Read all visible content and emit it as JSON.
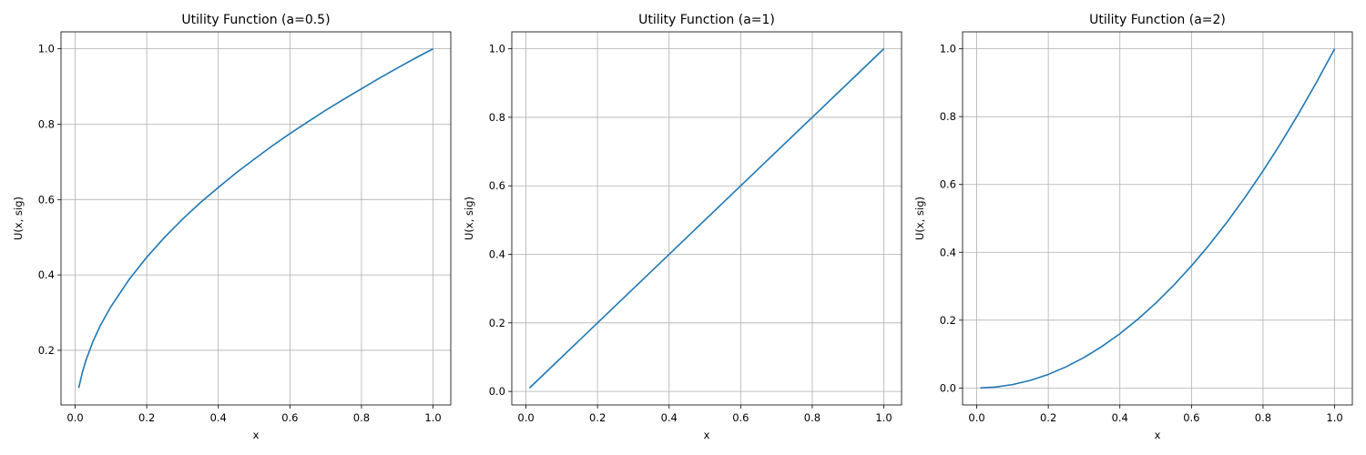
{
  "chart_data": [
    {
      "type": "line",
      "title": "Utility Function (a=0.5)",
      "xlabel": "x",
      "ylabel": "U(x, sig)",
      "a": 0.5,
      "xlim": [
        -0.0395,
        1.0495
      ],
      "ylim": [
        0.055,
        1.045
      ],
      "xticks": [
        0.0,
        0.2,
        0.4,
        0.6,
        0.8,
        1.0
      ],
      "xtick_labels": [
        "0.0",
        "0.2",
        "0.4",
        "0.6",
        "0.8",
        "1.0"
      ],
      "yticks": [
        0.2,
        0.4,
        0.6,
        0.8,
        1.0
      ],
      "ytick_labels": [
        "0.2",
        "0.4",
        "0.6",
        "0.8",
        "1.0"
      ],
      "grid": true,
      "line_color": "#1f77b4",
      "series": [
        {
          "x": [
            0.01,
            0.02,
            0.03,
            0.05,
            0.07,
            0.1,
            0.15,
            0.2,
            0.25,
            0.3,
            0.35,
            0.4,
            0.45,
            0.5,
            0.55,
            0.6,
            0.65,
            0.7,
            0.75,
            0.8,
            0.85,
            0.9,
            0.95,
            1.0
          ],
          "y": [
            0.1,
            0.141,
            0.173,
            0.224,
            0.265,
            0.316,
            0.387,
            0.447,
            0.5,
            0.548,
            0.592,
            0.632,
            0.671,
            0.707,
            0.742,
            0.775,
            0.806,
            0.837,
            0.866,
            0.894,
            0.922,
            0.949,
            0.975,
            1.0
          ]
        }
      ]
    },
    {
      "type": "line",
      "title": "Utility Function (a=1)",
      "xlabel": "x",
      "ylabel": "U(x, sig)",
      "a": 1,
      "xlim": [
        -0.0395,
        1.0495
      ],
      "ylim": [
        -0.0395,
        1.0495
      ],
      "xticks": [
        0.0,
        0.2,
        0.4,
        0.6,
        0.8,
        1.0
      ],
      "xtick_labels": [
        "0.0",
        "0.2",
        "0.4",
        "0.6",
        "0.8",
        "1.0"
      ],
      "yticks": [
        0.0,
        0.2,
        0.4,
        0.6,
        0.8,
        1.0
      ],
      "ytick_labels": [
        "0.0",
        "0.2",
        "0.4",
        "0.6",
        "0.8",
        "1.0"
      ],
      "grid": true,
      "line_color": "#1f77b4",
      "series": [
        {
          "x": [
            0.01,
            0.2,
            0.4,
            0.6,
            0.8,
            1.0
          ],
          "y": [
            0.01,
            0.2,
            0.4,
            0.6,
            0.8,
            1.0
          ]
        }
      ]
    },
    {
      "type": "line",
      "title": "Utility Function (a=2)",
      "xlabel": "x",
      "ylabel": "U(x, sig)",
      "a": 2,
      "xlim": [
        -0.0395,
        1.0495
      ],
      "ylim": [
        -0.05,
        1.05
      ],
      "xticks": [
        0.0,
        0.2,
        0.4,
        0.6,
        0.8,
        1.0
      ],
      "xtick_labels": [
        "0.0",
        "0.2",
        "0.4",
        "0.6",
        "0.8",
        "1.0"
      ],
      "yticks": [
        0.0,
        0.2,
        0.4,
        0.6,
        0.8,
        1.0
      ],
      "ytick_labels": [
        "0.0",
        "0.2",
        "0.4",
        "0.6",
        "0.8",
        "1.0"
      ],
      "grid": true,
      "line_color": "#1f77b4",
      "series": [
        {
          "x": [
            0.01,
            0.05,
            0.1,
            0.15,
            0.2,
            0.25,
            0.3,
            0.35,
            0.4,
            0.45,
            0.5,
            0.55,
            0.6,
            0.65,
            0.7,
            0.75,
            0.8,
            0.85,
            0.9,
            0.95,
            1.0
          ],
          "y": [
            0.0001,
            0.0025,
            0.01,
            0.0225,
            0.04,
            0.0625,
            0.09,
            0.1225,
            0.16,
            0.2025,
            0.25,
            0.3025,
            0.36,
            0.4225,
            0.49,
            0.5625,
            0.64,
            0.7225,
            0.81,
            0.9025,
            1.0
          ]
        }
      ]
    }
  ]
}
